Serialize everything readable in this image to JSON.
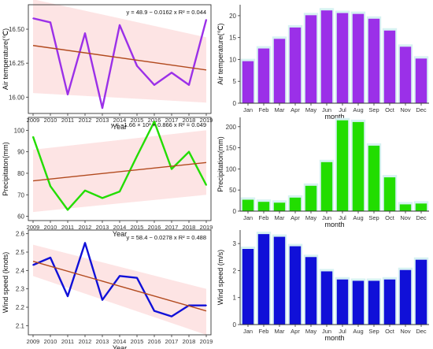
{
  "colors": {
    "air": "#9b30e8",
    "precip": "#22dd00",
    "wind": "#1010d8",
    "trend": "#b24a1e",
    "band": "#fde4e4",
    "halo": "#d7f2f2"
  },
  "chart_data": [
    {
      "id": "air-annual",
      "type": "line",
      "xlabel": "Year",
      "ylabel": "Air temperature(℃)",
      "equation": "y = 48.9 − 0.0162 x   R² = 0.044",
      "x": [
        2009,
        2010,
        2011,
        2012,
        2013,
        2014,
        2015,
        2016,
        2017,
        2018,
        2019
      ],
      "values": [
        16.58,
        16.55,
        16.02,
        16.47,
        15.92,
        16.53,
        16.23,
        16.09,
        16.18,
        16.09,
        16.57
      ],
      "trend": [
        16.38,
        16.2
      ],
      "band": [
        [
          16.72,
          16.03
        ],
        [
          16.44,
          15.96
        ]
      ],
      "xlim": [
        2009,
        2019
      ],
      "ylim": [
        15.88,
        16.68
      ],
      "yticks": [
        16.0,
        16.25,
        16.5
      ],
      "ytick_labels": [
        "16.00",
        "16.25",
        "16.50"
      ]
    },
    {
      "id": "air-monthly",
      "type": "bar",
      "xlabel": "month",
      "ylabel": "Air temperature(℃)",
      "categories": [
        "Jan",
        "Feb",
        "Mar",
        "Apr",
        "May",
        "Jun",
        "Jul",
        "Aug",
        "Sep",
        "Oct",
        "Nov",
        "Dec"
      ],
      "values": [
        9.6,
        12.5,
        14.7,
        17.3,
        20.1,
        21.2,
        20.6,
        20.4,
        19.3,
        16.6,
        12.9,
        10.2
      ],
      "ylim": [
        0,
        22.5
      ],
      "yticks": [
        0,
        5,
        10,
        15,
        20
      ],
      "ytick_labels": [
        "0",
        "5",
        "10",
        "15",
        "20"
      ]
    },
    {
      "id": "precip-annual",
      "type": "line",
      "xlabel": "Year",
      "ylabel": "Precipitaton(mm)",
      "equation": "y = −1.66 × 10³ + 0.866 x   R² = 0.049",
      "x": [
        2009,
        2010,
        2011,
        2012,
        2013,
        2014,
        2015,
        2016,
        2017,
        2018,
        2019
      ],
      "values": [
        97,
        74,
        63,
        72,
        68.5,
        71.5,
        88,
        104,
        82,
        90,
        74.5
      ],
      "trend": [
        76.5,
        85
      ],
      "band": [
        [
          91,
          62
        ],
        [
          100,
          70
        ]
      ],
      "xlim": [
        2009,
        2019
      ],
      "ylim": [
        58,
        106
      ],
      "yticks": [
        60,
        70,
        80,
        90,
        100
      ],
      "ytick_labels": [
        "60",
        "70",
        "80",
        "90",
        "100"
      ]
    },
    {
      "id": "precip-monthly",
      "type": "bar",
      "xlabel": "month",
      "ylabel": "Precipitation(mm)",
      "categories": [
        "Jan",
        "Feb",
        "Mar",
        "Apr",
        "May",
        "Jun",
        "Jul",
        "Aug",
        "Sep",
        "Oct",
        "Nov",
        "Dec"
      ],
      "values": [
        27,
        22,
        20,
        32,
        60,
        116,
        215,
        211,
        155,
        80,
        16,
        18
      ],
      "ylim": [
        0,
        222
      ],
      "yticks": [
        0,
        50,
        100,
        150,
        200
      ],
      "ytick_labels": [
        "0",
        "50",
        "100",
        "150",
        "200"
      ]
    },
    {
      "id": "wind-annual",
      "type": "line",
      "xlabel": "Year",
      "ylabel": "Wind speed (knots)",
      "equation": "y = 58.4 − 0.0278 x   R² = 0.488",
      "x": [
        2009,
        2010,
        2011,
        2012,
        2013,
        2014,
        2015,
        2016,
        2017,
        2018,
        2019
      ],
      "values": [
        2.43,
        2.47,
        2.26,
        2.55,
        2.24,
        2.37,
        2.36,
        2.18,
        2.15,
        2.21,
        2.21
      ],
      "trend": [
        2.45,
        2.18
      ],
      "band": [
        [
          2.54,
          2.37
        ],
        [
          2.3,
          2.05
        ]
      ],
      "xlim": [
        2009,
        2019
      ],
      "ylim": [
        2.05,
        2.62
      ],
      "yticks": [
        2.1,
        2.2,
        2.3,
        2.4,
        2.5,
        2.6
      ],
      "ytick_labels": [
        "2.1",
        "2.2",
        "2.3",
        "2.4",
        "2.5",
        "2.6"
      ]
    },
    {
      "id": "wind-monthly",
      "type": "bar",
      "xlabel": "month",
      "ylabel": "Wind speed (m/s)",
      "categories": [
        "Jan",
        "Feb",
        "Mar",
        "Apr",
        "May",
        "Jun",
        "Jul",
        "Aug",
        "Sep",
        "Oct",
        "Nov",
        "Dec"
      ],
      "values": [
        2.8,
        3.35,
        3.25,
        2.9,
        2.5,
        1.97,
        1.67,
        1.62,
        1.62,
        1.67,
        2.02,
        2.4
      ],
      "ylim": [
        0,
        3.5
      ],
      "yticks": [
        0,
        1,
        2,
        3
      ],
      "ytick_labels": [
        "0",
        "1",
        "2",
        "3"
      ]
    }
  ]
}
